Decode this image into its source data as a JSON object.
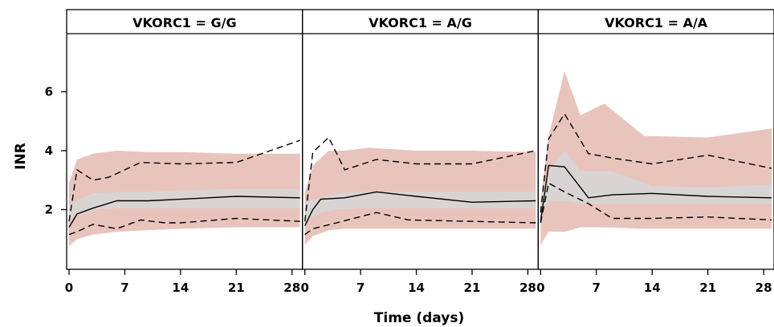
{
  "chart_data": {
    "type": "line",
    "ylabel": "INR",
    "xlabel": "Time (days)",
    "x_ticks": [
      "0",
      "7",
      "14",
      "21",
      "28"
    ],
    "y_ticks": [
      "2",
      "4",
      "6"
    ],
    "xlim": [
      0,
      29
    ],
    "ylim": [
      0,
      8
    ],
    "colors": {
      "outer_band": "#e8c4bd",
      "median_band": "#d6d6d6",
      "line": "#000000"
    },
    "panels": [
      {
        "title": "VKORC1 = G/G",
        "median_band": [
          [
            0,
            1.6,
            2.2
          ],
          [
            1,
            1.8,
            2.3
          ],
          [
            3,
            2.0,
            2.55
          ],
          [
            6,
            2.05,
            2.6
          ],
          [
            10,
            2.05,
            2.6
          ],
          [
            14,
            2.05,
            2.65
          ],
          [
            21,
            2.05,
            2.7
          ],
          [
            29,
            2.05,
            2.7
          ]
        ],
        "outer_band": [
          [
            0,
            0.75,
            2.9
          ],
          [
            1,
            1.0,
            3.7
          ],
          [
            3,
            1.15,
            3.9
          ],
          [
            6,
            1.25,
            4.0
          ],
          [
            10,
            1.3,
            3.95
          ],
          [
            14,
            1.35,
            3.95
          ],
          [
            21,
            1.4,
            3.9
          ],
          [
            29,
            1.4,
            3.9
          ]
        ],
        "median": [
          [
            0,
            1.4
          ],
          [
            1,
            1.85
          ],
          [
            3,
            2.05
          ],
          [
            6,
            2.3
          ],
          [
            10,
            2.3
          ],
          [
            14,
            2.35
          ],
          [
            21,
            2.45
          ],
          [
            29,
            2.4
          ]
        ],
        "upper": [
          [
            0,
            1.6
          ],
          [
            1,
            3.35
          ],
          [
            3,
            3.0
          ],
          [
            5,
            3.1
          ],
          [
            9,
            3.6
          ],
          [
            14,
            3.55
          ],
          [
            21,
            3.6
          ],
          [
            29,
            4.35
          ]
        ],
        "lower": [
          [
            0,
            1.15
          ],
          [
            1,
            1.25
          ],
          [
            3,
            1.5
          ],
          [
            6,
            1.35
          ],
          [
            9,
            1.65
          ],
          [
            12,
            1.55
          ],
          [
            14,
            1.55
          ],
          [
            21,
            1.7
          ],
          [
            29,
            1.6
          ]
        ]
      },
      {
        "title": "VKORC1 = A/G",
        "median_band": [
          [
            0,
            1.6,
            2.25
          ],
          [
            2,
            1.9,
            2.4
          ],
          [
            4,
            2.0,
            2.55
          ],
          [
            7,
            2.05,
            2.6
          ],
          [
            10,
            2.05,
            2.6
          ],
          [
            14,
            2.05,
            2.6
          ],
          [
            21,
            2.05,
            2.6
          ],
          [
            29,
            2.05,
            2.6
          ]
        ],
        "outer_band": [
          [
            0,
            0.8,
            2.6
          ],
          [
            1,
            1.1,
            3.5
          ],
          [
            3,
            1.3,
            4.0
          ],
          [
            5,
            1.35,
            4.0
          ],
          [
            8,
            1.35,
            4.1
          ],
          [
            14,
            1.35,
            4.0
          ],
          [
            21,
            1.35,
            4.0
          ],
          [
            29,
            1.35,
            3.95
          ]
        ],
        "median": [
          [
            0,
            1.45
          ],
          [
            1,
            2.0
          ],
          [
            2,
            2.35
          ],
          [
            5,
            2.4
          ],
          [
            9,
            2.6
          ],
          [
            14,
            2.45
          ],
          [
            21,
            2.25
          ],
          [
            29,
            2.3
          ]
        ],
        "upper": [
          [
            0,
            1.6
          ],
          [
            1,
            3.95
          ],
          [
            3,
            4.45
          ],
          [
            5,
            3.35
          ],
          [
            9,
            3.7
          ],
          [
            14,
            3.55
          ],
          [
            21,
            3.55
          ],
          [
            29,
            4.0
          ]
        ],
        "lower": [
          [
            0,
            1.15
          ],
          [
            1,
            1.35
          ],
          [
            4,
            1.55
          ],
          [
            9,
            1.9
          ],
          [
            13,
            1.65
          ],
          [
            21,
            1.6
          ],
          [
            29,
            1.55
          ]
        ]
      },
      {
        "title": "VKORC1 = A/A",
        "median_band": [
          [
            0,
            1.7,
            2.4
          ],
          [
            1,
            2.3,
            3.3
          ],
          [
            3,
            2.3,
            4.0
          ],
          [
            5,
            2.2,
            3.3
          ],
          [
            9,
            2.2,
            3.3
          ],
          [
            14,
            2.2,
            2.8
          ],
          [
            21,
            2.2,
            2.75
          ],
          [
            29,
            2.2,
            2.85
          ]
        ],
        "outer_band": [
          [
            0,
            0.8,
            2.3
          ],
          [
            1,
            1.25,
            4.5
          ],
          [
            3,
            1.25,
            6.7
          ],
          [
            5,
            1.4,
            5.2
          ],
          [
            8,
            1.4,
            5.6
          ],
          [
            13,
            1.35,
            4.5
          ],
          [
            21,
            1.35,
            4.45
          ],
          [
            29,
            1.35,
            4.75
          ]
        ],
        "median": [
          [
            0,
            1.6
          ],
          [
            1,
            3.5
          ],
          [
            3,
            3.45
          ],
          [
            6,
            2.4
          ],
          [
            9,
            2.5
          ],
          [
            14,
            2.55
          ],
          [
            21,
            2.45
          ],
          [
            29,
            2.4
          ]
        ],
        "upper": [
          [
            0,
            1.9
          ],
          [
            1,
            4.4
          ],
          [
            3,
            5.25
          ],
          [
            6,
            3.9
          ],
          [
            9,
            3.75
          ],
          [
            14,
            3.55
          ],
          [
            21,
            3.85
          ],
          [
            29,
            3.4
          ]
        ],
        "lower": [
          [
            0,
            1.55
          ],
          [
            1,
            2.9
          ],
          [
            3,
            2.6
          ],
          [
            6,
            2.2
          ],
          [
            9,
            1.7
          ],
          [
            14,
            1.7
          ],
          [
            21,
            1.75
          ],
          [
            29,
            1.65
          ]
        ]
      }
    ]
  }
}
